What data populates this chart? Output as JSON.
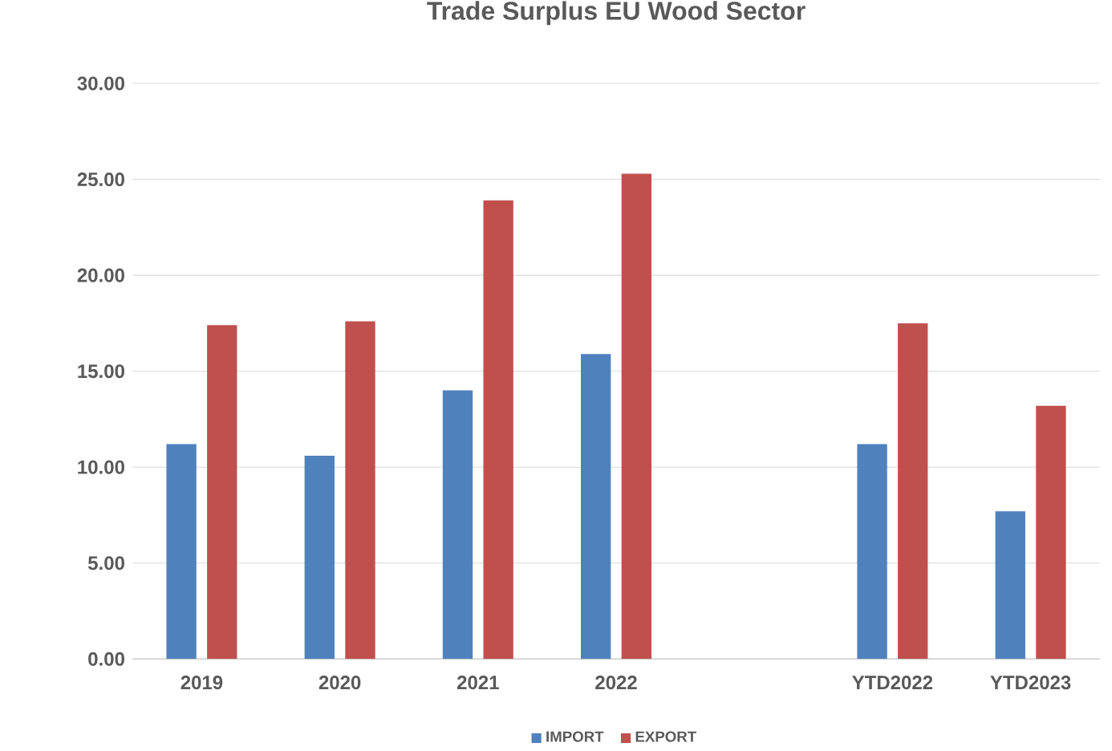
{
  "chart_data": {
    "type": "bar",
    "title": "Trade Surplus EU Wood Sector",
    "categories": [
      "2019",
      "2020",
      "2021",
      "2022",
      null,
      "YTD2022",
      "YTD2023"
    ],
    "series": [
      {
        "name": "IMPORT",
        "color": "#4f81bd",
        "values": [
          11.2,
          10.6,
          14.0,
          15.9,
          null,
          11.2,
          7.7
        ]
      },
      {
        "name": "EXPORT",
        "color": "#c0504d",
        "values": [
          17.4,
          17.6,
          23.9,
          25.3,
          null,
          17.5,
          13.2
        ]
      }
    ],
    "ylim": [
      0,
      30
    ],
    "yticks": [
      {
        "value": 0,
        "label": "0.00"
      },
      {
        "value": 5,
        "label": "5.00"
      },
      {
        "value": 10,
        "label": "10.00"
      },
      {
        "value": 15,
        "label": "15.00"
      },
      {
        "value": 20,
        "label": "20.00"
      },
      {
        "value": 25,
        "label": "25.00"
      },
      {
        "value": 30,
        "label": "30.00"
      }
    ],
    "grid": "y",
    "legend": "bottom"
  }
}
